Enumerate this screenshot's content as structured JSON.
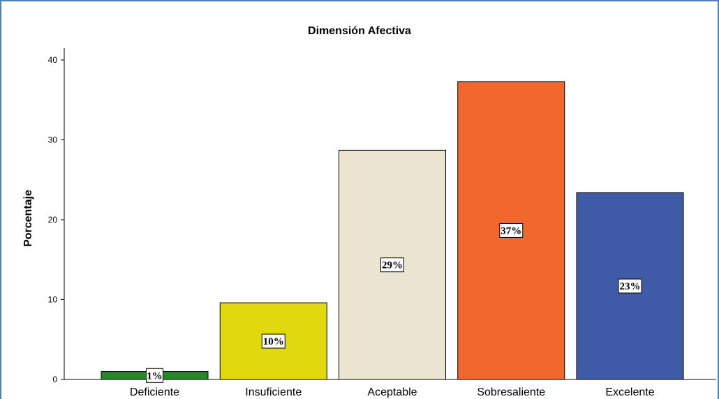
{
  "chart_data": {
    "type": "bar",
    "title": "Dimensión Afectiva",
    "xlabel": "",
    "ylabel": "Porcentaje",
    "ylim": [
      0,
      42
    ],
    "yticks": [
      0,
      10,
      20,
      30,
      40
    ],
    "categories": [
      "Deficiente",
      "Insuficiente",
      "Aceptable",
      "Sobresaliente",
      "Excelente"
    ],
    "values": [
      1.0,
      9.6,
      28.7,
      37.3,
      23.4
    ],
    "data_labels": [
      "1%",
      "10%",
      "29%",
      "37%",
      "23%"
    ],
    "colors": [
      "#238b23",
      "#e2d80e",
      "#ebe4d0",
      "#f2682c",
      "#3f5ba8"
    ],
    "grid": false,
    "legend": "none"
  }
}
